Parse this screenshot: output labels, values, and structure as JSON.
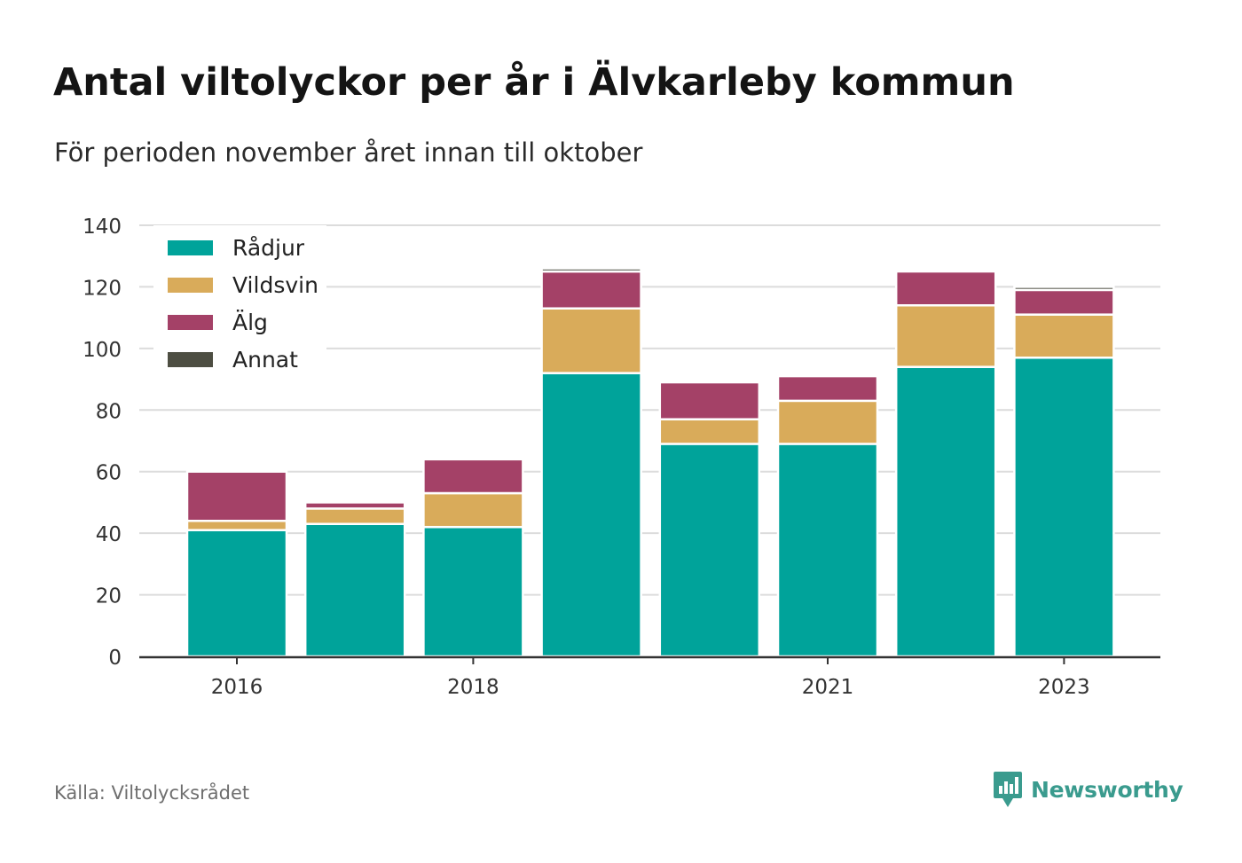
{
  "title": "Antal viltolyckor per år i Älvkarleby kommun",
  "subtitle": "För perioden november året innan till oktober",
  "source": "Källa: Viltolycksrådet",
  "brand": "Newsworthy",
  "colors": {
    "Rådjur": "#00a39a",
    "Vildsvin": "#d9ab5a",
    "Älg": "#a44167",
    "Annat": "#4d4e42",
    "grid": "#dcdcdc",
    "axis": "#333333",
    "brand": "#3a9b8e"
  },
  "chart_data": {
    "type": "bar",
    "stacked": true,
    "categories": [
      "2016",
      "2017",
      "2018",
      "2019",
      "2020",
      "2021",
      "2022",
      "2023"
    ],
    "x_tick_labels": [
      "2016",
      "",
      "2018",
      "",
      "",
      "2021",
      "",
      "2023"
    ],
    "series": [
      {
        "name": "Rådjur",
        "values": [
          41,
          43,
          42,
          92,
          69,
          69,
          94,
          97
        ]
      },
      {
        "name": "Vildsvin",
        "values": [
          3,
          5,
          11,
          21,
          8,
          14,
          20,
          14
        ]
      },
      {
        "name": "Älg",
        "values": [
          16,
          2,
          11,
          12,
          12,
          8,
          11,
          8
        ]
      },
      {
        "name": "Annat",
        "values": [
          0,
          0,
          0,
          1,
          0,
          0,
          0,
          1
        ]
      }
    ],
    "ylim": [
      0,
      140
    ],
    "yticks": [
      0,
      20,
      40,
      60,
      80,
      100,
      120,
      140
    ],
    "xlabel": "",
    "ylabel": "",
    "grid": true,
    "legend_position": "top-left"
  }
}
